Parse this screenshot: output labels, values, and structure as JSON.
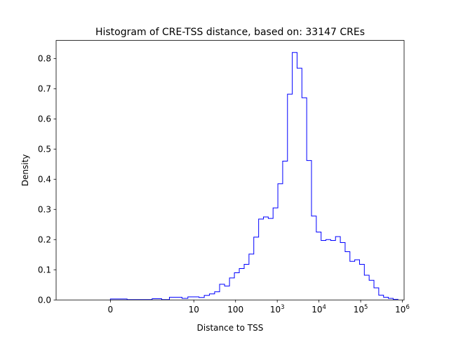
{
  "chart_data": {
    "type": "histogram",
    "title": "Histogram of CRE-TSS distance, based on: 33147 CREs",
    "xlabel": "Distance to TSS",
    "ylabel": "Density",
    "x_scale": "symlog",
    "xlim": [
      -2,
      1100000
    ],
    "ylim": [
      0,
      0.86
    ],
    "grid": false,
    "series_color": "#0000ff",
    "x_ticks": [
      {
        "value": 0,
        "label": "0"
      },
      {
        "value": 10,
        "label": "10"
      },
      {
        "value": 100,
        "label": "100"
      },
      {
        "value": 1000,
        "label": "10",
        "exp": "3"
      },
      {
        "value": 10000,
        "label": "10",
        "exp": "4"
      },
      {
        "value": 100000,
        "label": "10",
        "exp": "5"
      },
      {
        "value": 1000000,
        "label": "10",
        "exp": "6"
      }
    ],
    "y_ticks": [
      {
        "value": 0.0,
        "label": "0.0"
      },
      {
        "value": 0.1,
        "label": "0.1"
      },
      {
        "value": 0.2,
        "label": "0.2"
      },
      {
        "value": 0.3,
        "label": "0.3"
      },
      {
        "value": 0.4,
        "label": "0.4"
      },
      {
        "value": 0.5,
        "label": "0.5"
      },
      {
        "value": 0.6,
        "label": "0.6"
      },
      {
        "value": 0.7,
        "label": "0.7"
      },
      {
        "value": 0.8,
        "label": "0.8"
      }
    ],
    "bin_edges": [
      0,
      0.4,
      1.0,
      1.7,
      2.6,
      3.7,
      5.2,
      7.2,
      9.8,
      13.3,
      17.8,
      23.7,
      31.5,
      41.5,
      54.6,
      71.7,
      93.9,
      123,
      161,
      210,
      274,
      358,
      467,
      609,
      794,
      1035,
      1350,
      1760,
      2294,
      2990,
      3899,
      5083,
      6626,
      8638,
      11261,
      14681,
      19140,
      24952,
      32529,
      42407,
      55285,
      72074,
      93961,
      122494,
      159692,
      208186,
      271406,
      353824,
      461268,
      601340,
      783938
    ],
    "densities": [
      0.003,
      0.001,
      0.004,
      0.001,
      0.009,
      0.009,
      0.005,
      0.01,
      0.01,
      0.008,
      0.015,
      0.02,
      0.027,
      0.052,
      0.046,
      0.073,
      0.09,
      0.104,
      0.118,
      0.152,
      0.208,
      0.268,
      0.275,
      0.27,
      0.305,
      0.385,
      0.46,
      0.682,
      0.82,
      0.768,
      0.67,
      0.462,
      0.278,
      0.225,
      0.197,
      0.2,
      0.197,
      0.21,
      0.19,
      0.16,
      0.128,
      0.133,
      0.118,
      0.082,
      0.065,
      0.04,
      0.016,
      0.009,
      0.005,
      0.002
    ]
  }
}
